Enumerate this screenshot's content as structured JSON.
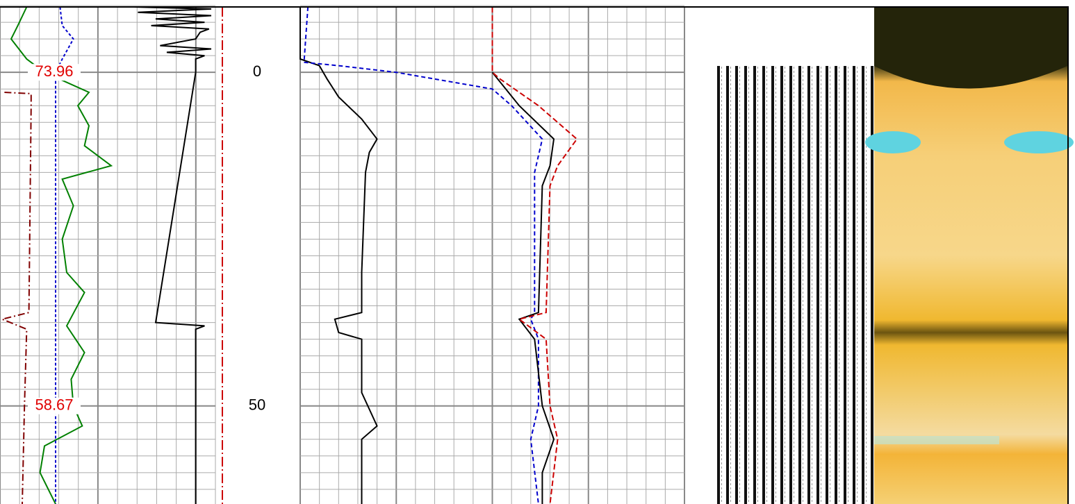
{
  "chart_data": {
    "type": "log",
    "ylim": [
      -9.8,
      64.7
    ],
    "yticks": [
      0,
      50
    ],
    "grid": true,
    "annotations": [
      {
        "text": "73.96",
        "depth": 0,
        "color": "#e00000"
      },
      {
        "text": "58.67",
        "depth": 50,
        "color": "#e00000"
      }
    ],
    "tracks": [
      {
        "xlim": [
          0,
          100
        ],
        "series": [
          {
            "color": "#008000",
            "dash": "",
            "depth": [
              -9.8,
              -7,
              -5,
              -2,
              0,
              3,
              5,
              8,
              11,
              14,
              16,
              20,
              25,
              30,
              33,
              38,
              42,
              46,
              50,
              53,
              56,
              60,
              64.7
            ],
            "values": [
              12,
              8,
              5,
              12,
              20,
              40,
              35,
              40,
              38,
              50,
              28,
              33,
              28,
              30,
              38,
              30,
              38,
              32,
              33,
              37,
              20,
              18,
              25
            ]
          },
          {
            "color": "#0000cc",
            "dash": "4 3",
            "depth": [
              -9.8,
              -7,
              -5,
              -2,
              0,
              64.7
            ],
            "values": [
              27,
              28,
              33,
              28,
              25,
              25
            ]
          },
          {
            "color": "#800000",
            "dash": "10 4 2 4",
            "depth": [
              3,
              3.2,
              5,
              36,
              37,
              38.5,
              50,
              64.7
            ],
            "values": [
              2,
              14,
              14,
              13,
              1,
              12,
              11,
              10
            ]
          },
          {
            "color": "#000000",
            "dash": "",
            "depth": [
              -9.8,
              -9.5,
              -9,
              -8.5,
              -8,
              -7.5,
              -7,
              -6.5,
              -6,
              -5,
              -4,
              -3.5,
              -3,
              -2.5,
              -2,
              0,
              37.5,
              38,
              38.5,
              64.7
            ],
            "values": [
              60,
              95,
              62,
              95,
              70,
              92,
              68,
              94,
              90,
              88,
              72,
              95,
              75,
              92,
              88,
              88,
              70,
              92,
              88,
              88
            ]
          },
          {
            "color": "#cc0000",
            "dash": "14 4 2 4",
            "depth": [
              -9.8,
              64.7
            ],
            "values": [
              100,
              100
            ]
          }
        ]
      },
      {
        "xlim": [
          0,
          100
        ],
        "series": [
          {
            "color": "#000000",
            "dash": "",
            "depth": [
              -9.8,
              -2,
              -1,
              1,
              3.7,
              7,
              10,
              12,
              15,
              30,
              36,
              37,
              39,
              40,
              48,
              53,
              55,
              64.7
            ],
            "values": [
              0,
              0,
              5,
              7,
              10,
              16,
              20,
              18,
              17,
              16,
              16,
              9,
              10,
              16,
              16,
              20,
              16,
              16
            ]
          },
          {
            "color": "#0000cc",
            "dash": "6 4",
            "depth": [
              -9.8,
              -1.5,
              -1,
              0,
              2.5,
              5,
              10,
              15,
              36,
              37,
              40,
              50,
              55,
              64.7
            ],
            "values": [
              2,
              1,
              10,
              25,
              50,
              55,
              63,
              61,
              61,
              60,
              62,
              62,
              60,
              62
            ]
          },
          {
            "color": "#000000",
            "dash": "",
            "depth": [
              0,
              5,
              10,
              14,
              17,
              36,
              37,
              40,
              50,
              55,
              60,
              64.7
            ],
            "values": [
              50,
              57,
              66,
              65,
              63,
              62,
              57,
              61,
              63,
              66,
              63,
              63
            ]
          },
          {
            "color": "#cc0000",
            "dash": "8 4",
            "depth": [
              -9.8,
              0,
              1,
              5,
              10,
              14,
              17,
              36,
              37,
              40,
              50,
              55,
              64.7
            ],
            "values": [
              50,
              50,
              52,
              62,
              72,
              67,
              65,
              64,
              57,
              64,
              65,
              67,
              65
            ]
          }
        ]
      }
    ]
  }
}
